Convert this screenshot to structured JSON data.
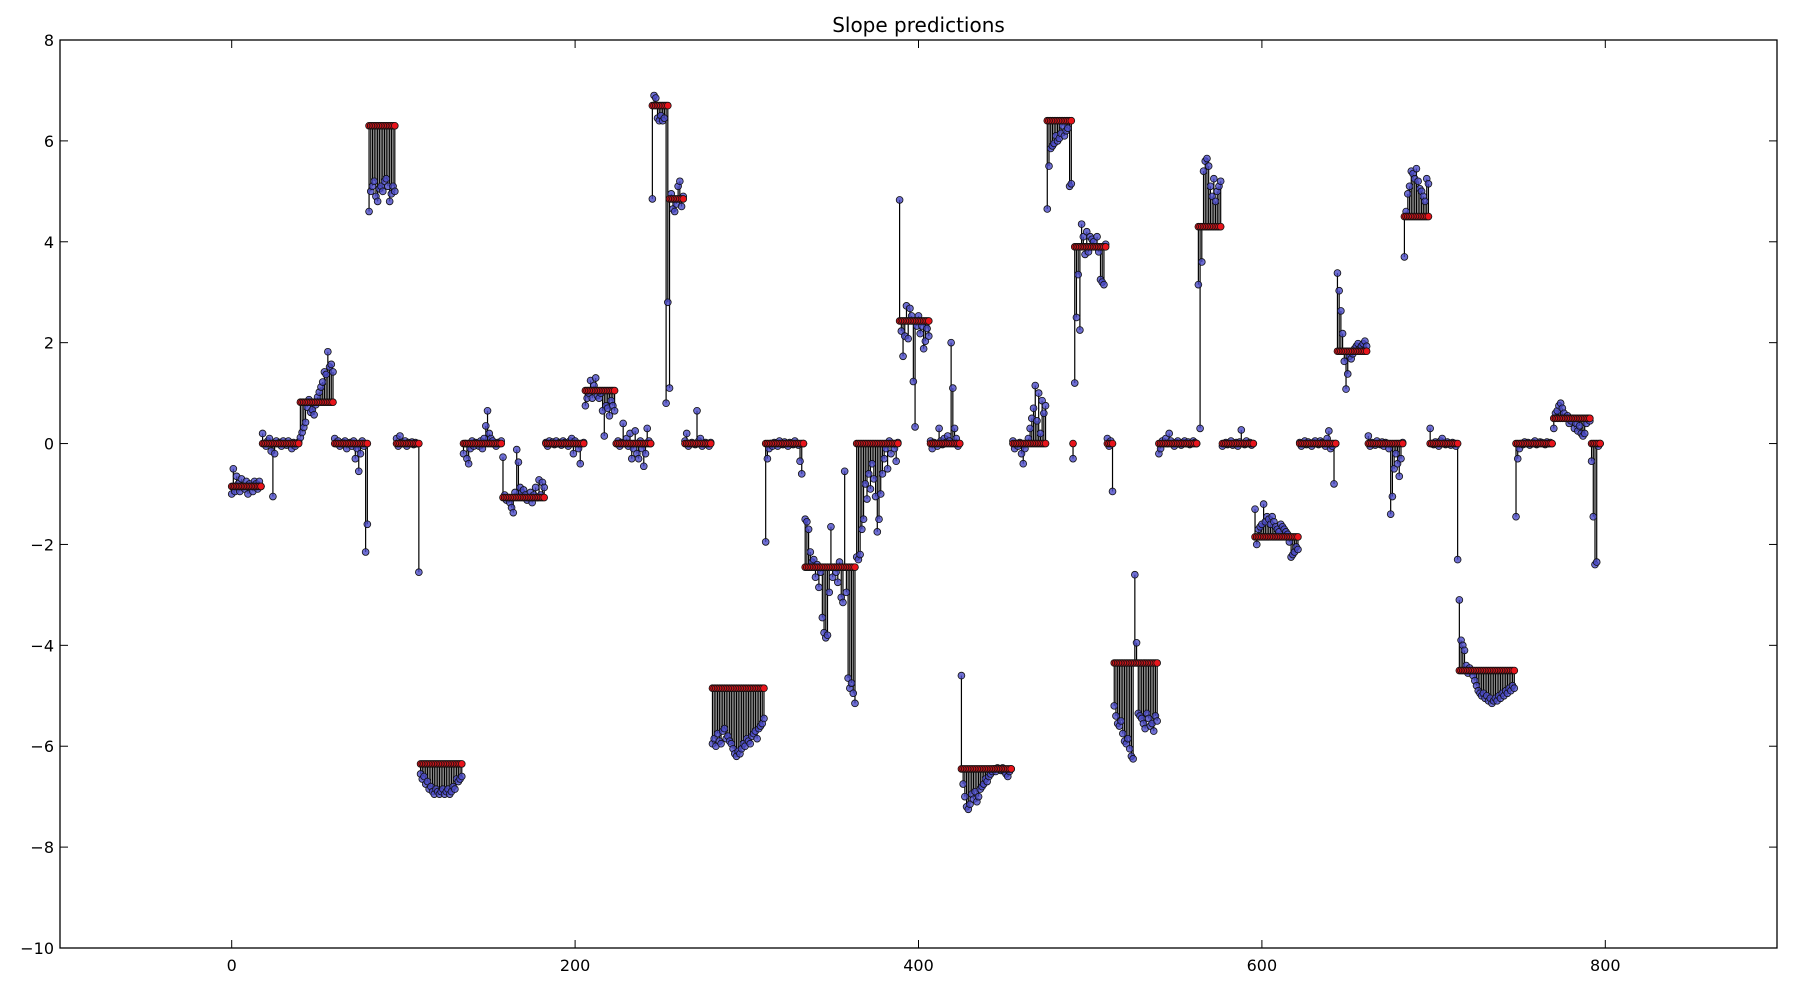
{
  "chart_data": {
    "type": "scatter",
    "title": "Slope predictions",
    "xlabel": "",
    "ylabel": "",
    "xlim": [
      -100,
      900
    ],
    "ylim": [
      -10,
      8
    ],
    "xticks": [
      0,
      200,
      400,
      600,
      800
    ],
    "yticks": [
      -10,
      -8,
      -6,
      -4,
      -2,
      0,
      2,
      4,
      6,
      8
    ],
    "grid": false,
    "legend": "none",
    "colors": {
      "actual": "#4b4bc8",
      "predicted": "#e8141b",
      "stem": "#000000"
    },
    "segments": [
      {
        "x0": 0,
        "x1": 18,
        "pred": -0.85,
        "dev": [
          -0.15,
          0.35,
          -0.1,
          0.2,
          0.05,
          -0.1,
          0.15,
          0,
          -0.05,
          0.1,
          -0.15,
          0.05,
          0,
          -0.1,
          0.1,
          0.05,
          -0.05,
          0.1,
          0
        ]
      },
      {
        "x0": 18,
        "x1": 40,
        "pred": 0,
        "dev": [
          0.2,
          0,
          -0.05,
          0.05,
          0.1,
          -0.15,
          -1.05,
          -0.2,
          0.05,
          0,
          0.02,
          -0.05,
          0.05,
          0,
          -0.03,
          0.05,
          0,
          -0.1,
          0.02,
          -0.05,
          0,
          0.03
        ]
      },
      {
        "x0": 40,
        "x1": 60,
        "pred": 0.82,
        "dev": [
          -0.7,
          -0.6,
          -0.5,
          -0.4,
          -0.1,
          0.05,
          -0.2,
          -0.15,
          -0.25,
          -0.05,
          0.1,
          0.2,
          0.3,
          0.4,
          0.6,
          0.55,
          1.0,
          0.7,
          0.75,
          0.6
        ]
      },
      {
        "x0": 60,
        "x1": 80,
        "pred": 0,
        "dev": [
          0.1,
          0,
          0.05,
          -0.05,
          0,
          0.02,
          0.05,
          -0.1,
          0,
          0.02,
          -0.05,
          0.05,
          -0.3,
          -0.1,
          -0.55,
          -0.2,
          0.05,
          -0.05,
          -2.15,
          -1.6
        ]
      },
      {
        "x0": 80,
        "x1": 96,
        "pred": 6.3,
        "dev": [
          -1.7,
          -1.3,
          -1.2,
          -1.1,
          -1.4,
          -1.5,
          -1.25,
          -1.2,
          -1.3,
          -1.1,
          -1.05,
          -1.2,
          -1.5,
          -1.35,
          -1.2,
          -1.3
        ]
      },
      {
        "x0": 96,
        "x1": 110,
        "pred": 0,
        "dev": [
          0.1,
          -0.05,
          0.15,
          0.02,
          0,
          0.05,
          -0.05,
          0.02,
          0,
          0.03,
          -0.02,
          0.02,
          0,
          -2.55
        ]
      },
      {
        "x0": 110,
        "x1": 135,
        "pred": -6.35,
        "dev": [
          -0.2,
          -0.3,
          -0.25,
          -0.4,
          -0.35,
          -0.5,
          -0.45,
          -0.55,
          -0.6,
          -0.5,
          -0.55,
          -0.6,
          -0.55,
          -0.5,
          -0.6,
          -0.55,
          -0.5,
          -0.6,
          -0.55,
          -0.45,
          -0.5,
          -0.3,
          -0.35,
          -0.3,
          -0.25
        ]
      },
      {
        "x0": 135,
        "x1": 158,
        "pred": 0,
        "dev": [
          -0.2,
          0,
          -0.3,
          -0.4,
          -0.1,
          0.05,
          -0.05,
          0.02,
          0,
          -0.05,
          0.05,
          -0.1,
          0.1,
          0.35,
          0.65,
          0.2,
          0.1,
          0.05,
          0,
          -0.05,
          0.02,
          0,
          0.05
        ]
      },
      {
        "x0": 158,
        "x1": 183,
        "pred": -1.07,
        "dev": [
          0.8,
          0.05,
          -0.05,
          0,
          -0.1,
          -0.2,
          -0.3,
          0.1,
          0.95,
          0.7,
          0.2,
          0.1,
          0.15,
          0.05,
          -0.05,
          0,
          0.1,
          -0.1,
          0.05,
          0.2,
          0,
          0.35,
          0.05,
          0.3,
          0.2
        ]
      },
      {
        "x0": 183,
        "x1": 206,
        "pred": 0,
        "dev": [
          0.02,
          -0.05,
          0.05,
          0,
          0.03,
          -0.02,
          0.05,
          0,
          0.02,
          -0.03,
          0.05,
          0.02,
          0,
          -0.05,
          0.05,
          0.1,
          -0.2,
          0.05,
          0,
          -0.1,
          -0.4,
          0,
          0.02
        ]
      },
      {
        "x0": 206,
        "x1": 224,
        "pred": 1.05,
        "dev": [
          -0.3,
          -0.15,
          -0.05,
          0.2,
          -0.15,
          0.1,
          0.25,
          -0.1,
          -0.15,
          -0.05,
          -0.4,
          -0.9,
          -0.3,
          -0.35,
          -0.5,
          -0.2,
          -0.3,
          -0.4
        ]
      },
      {
        "x0": 224,
        "x1": 245,
        "pred": 0,
        "dev": [
          0,
          0.05,
          -0.05,
          0.02,
          0.4,
          0,
          0.1,
          -0.05,
          0.2,
          -0.3,
          -0.1,
          0.25,
          -0.2,
          -0.3,
          0.05,
          -0.1,
          -0.45,
          -0.2,
          0.3,
          0.05,
          0
        ]
      },
      {
        "x0": 245,
        "x1": 255,
        "pred": 6.7,
        "dev": [
          -1.85,
          0.2,
          0.15,
          -0.25,
          -0.3,
          -0.2,
          -0.3,
          -0.25,
          -5.9,
          -3.9
        ]
      },
      {
        "x0": 255,
        "x1": 264,
        "pred": 4.85,
        "dev": [
          -3.75,
          0.1,
          -0.2,
          -0.25,
          -0.1,
          0.25,
          0.35,
          -0.15,
          0.05
        ]
      },
      {
        "x0": 264,
        "x1": 280,
        "pred": 0,
        "dev": [
          0.05,
          0.2,
          -0.05,
          0,
          0.02,
          0,
          -0.02,
          0.65,
          0.05,
          0.1,
          -0.05,
          0,
          0.02,
          0,
          -0.05,
          0.02
        ]
      },
      {
        "x0": 280,
        "x1": 311,
        "pred": -4.85,
        "dev": [
          -1.1,
          -1.0,
          -1.15,
          -0.9,
          -1.05,
          -1.1,
          -0.85,
          -0.8,
          -1.0,
          -0.95,
          -1.05,
          -1.1,
          -1.2,
          -1.3,
          -1.35,
          -1.25,
          -1.3,
          -1.2,
          -1.1,
          -1.15,
          -1.0,
          -1.05,
          -1.1,
          -0.95,
          -0.9,
          -0.85,
          -1.0,
          -0.8,
          -0.75,
          -0.7,
          -0.6
        ]
      },
      {
        "x0": 311,
        "x1": 334,
        "pred": 0,
        "dev": [
          -1.95,
          -0.3,
          -0.1,
          0,
          -0.05,
          0.02,
          0,
          -0.05,
          0.05,
          0,
          -0.02,
          0.03,
          0,
          -0.05,
          0.02,
          0,
          -0.02,
          0.05,
          0,
          -0.03,
          -0.35,
          -0.6,
          0
        ]
      },
      {
        "x0": 334,
        "x1": 364,
        "pred": -2.45,
        "dev": [
          0.95,
          0.9,
          0.75,
          0.3,
          0.1,
          0.15,
          -0.2,
          0.05,
          -0.4,
          -0.1,
          -1.0,
          -1.3,
          -1.4,
          -1.35,
          -0.5,
          0.8,
          -0.2,
          0,
          -0.1,
          -0.3,
          0.1,
          -0.6,
          -0.7,
          1.9,
          -0.5,
          -2.2,
          -2.4,
          -2.3,
          -2.5,
          -2.7
        ]
      },
      {
        "x0": 364,
        "x1": 389,
        "pred": 0,
        "dev": [
          -2.25,
          -2.3,
          -2.2,
          -1.7,
          -1.5,
          -0.8,
          -1.1,
          -0.6,
          -0.9,
          -0.4,
          -0.7,
          -1.05,
          -1.75,
          -1.5,
          -1.0,
          -0.6,
          -0.3,
          -0.1,
          -0.5,
          0.05,
          -0.2,
          0,
          -0.1,
          -0.35,
          0.02
        ]
      },
      {
        "x0": 389,
        "x1": 407,
        "pred": 2.43,
        "dev": [
          2.4,
          -0.2,
          -0.7,
          -0.3,
          0.3,
          -0.35,
          0.25,
          0.1,
          -1.2,
          -2.1,
          -0.1,
          0.1,
          -0.25,
          -0.1,
          -0.55,
          -0.4,
          -0.15,
          -0.3
        ]
      },
      {
        "x0": 407,
        "x1": 425,
        "pred": 0,
        "dev": [
          0.05,
          -0.1,
          0.02,
          0,
          -0.05,
          0.3,
          0.05,
          -0.02,
          0.1,
          0.02,
          0.15,
          0.05,
          2.0,
          1.1,
          0.3,
          0.1,
          -0.05,
          0
        ]
      },
      {
        "x0": 425,
        "x1": 455,
        "pred": -6.45,
        "dev": [
          1.85,
          -0.3,
          -0.55,
          -0.75,
          -0.8,
          -0.7,
          -0.5,
          -0.6,
          -0.45,
          -0.65,
          -0.55,
          -0.4,
          -0.35,
          -0.3,
          -0.2,
          -0.25,
          -0.15,
          -0.1,
          -0.05,
          0,
          -0.05,
          0.02,
          0,
          -0.03,
          0.02,
          -0.05,
          -0.1,
          -0.15,
          -0.05,
          0
        ]
      },
      {
        "x0": 455,
        "x1": 475,
        "pred": 0,
        "dev": [
          0.05,
          -0.1,
          0,
          -0.05,
          0.02,
          -0.2,
          -0.4,
          -0.1,
          0,
          0.1,
          0.3,
          0.5,
          0.7,
          1.15,
          0.45,
          1.0,
          0.2,
          0.85,
          0.6,
          0.75
        ]
      },
      {
        "x0": 475,
        "x1": 490,
        "pred": 6.4,
        "dev": [
          -1.75,
          -0.9,
          -0.55,
          -0.5,
          -0.45,
          -0.3,
          -0.4,
          -0.35,
          -0.25,
          -0.1,
          -0.3,
          -0.2,
          -0.15,
          -1.3,
          -1.25
        ]
      },
      {
        "x0": 490,
        "x1": 491,
        "pred": 0,
        "dev": [
          -0.3
        ]
      },
      {
        "x0": 491,
        "x1": 510,
        "pred": 3.9,
        "dev": [
          -2.7,
          -1.4,
          -0.55,
          -1.65,
          0.45,
          0.2,
          -0.15,
          0.3,
          -0.1,
          0.2,
          0.15,
          0.1,
          0,
          0.2,
          -0.1,
          -0.65,
          -0.7,
          -0.75,
          0.05
        ]
      },
      {
        "x0": 510,
        "x1": 514,
        "pred": 0,
        "dev": [
          0.1,
          -0.05,
          0.05,
          -0.95
        ]
      },
      {
        "x0": 514,
        "x1": 540,
        "pred": -4.35,
        "dev": [
          -0.85,
          -1.05,
          -1.2,
          -1.25,
          -1.15,
          -1.4,
          -1.55,
          -1.6,
          -1.5,
          -1.7,
          -1.85,
          -1.9,
          1.75,
          0.4,
          -1.0,
          -1.05,
          -1.1,
          -1.2,
          -1.3,
          -1.0,
          -1.1,
          -1.25,
          -1.2,
          -1.35,
          -1.05,
          -1.15
        ]
      },
      {
        "x0": 540,
        "x1": 563,
        "pred": 0,
        "dev": [
          -0.2,
          -0.1,
          0.05,
          0,
          0.1,
          0,
          0.2,
          0.05,
          0,
          -0.05,
          0.02,
          0.05,
          0,
          -0.03,
          0.02,
          0.05,
          0,
          0.03,
          -0.02,
          0,
          0.05,
          0.02,
          0
        ]
      },
      {
        "x0": 563,
        "x1": 577,
        "pred": 4.3,
        "dev": [
          -1.15,
          -4.0,
          -0.7,
          1.1,
          1.3,
          1.35,
          1.2,
          0.8,
          0.6,
          0.95,
          0.5,
          0.7,
          0.8,
          0.9
        ]
      },
      {
        "x0": 577,
        "x1": 596,
        "pred": 0,
        "dev": [
          -0.05,
          0,
          0.02,
          -0.02,
          0,
          0.05,
          -0.03,
          0,
          0.02,
          -0.05,
          0.03,
          0.27,
          0,
          -0.02,
          0.05,
          0,
          0.02,
          -0.03,
          0
        ]
      },
      {
        "x0": 596,
        "x1": 622,
        "pred": -1.85,
        "dev": [
          0.55,
          -0.15,
          0.15,
          0.2,
          0.25,
          0.65,
          0.3,
          0.4,
          0.35,
          0.25,
          0.4,
          0.3,
          0.2,
          0.15,
          0.1,
          0.25,
          0.2,
          0.15,
          0.1,
          0.05,
          -0.1,
          -0.4,
          -0.35,
          -0.3,
          -0.2,
          -0.25
        ]
      },
      {
        "x0": 622,
        "x1": 644,
        "pred": 0,
        "dev": [
          0.02,
          -0.05,
          0,
          0.05,
          -0.02,
          0.03,
          0,
          -0.05,
          0.02,
          0.05,
          0,
          -0.02,
          0.05,
          0.02,
          0,
          -0.05,
          0.1,
          0.25,
          -0.1,
          -0.05,
          -0.8,
          0
        ]
      },
      {
        "x0": 644,
        "x1": 662,
        "pred": 1.83,
        "dev": [
          1.55,
          1.2,
          0.8,
          0.35,
          -0.2,
          -0.75,
          -0.45,
          -0.1,
          -0.15,
          -0.05,
          0.05,
          0.1,
          0.15,
          0.05,
          0.1,
          0.15,
          0.2,
          0.1
        ]
      },
      {
        "x0": 662,
        "x1": 683,
        "pred": 0,
        "dev": [
          0.15,
          -0.05,
          0.02,
          0,
          -0.03,
          0.05,
          0,
          -0.02,
          0.03,
          -0.05,
          0.02,
          0,
          -0.1,
          -1.4,
          -1.05,
          -0.5,
          -0.2,
          -0.4,
          -0.65,
          -0.3,
          0.02
        ]
      },
      {
        "x0": 683,
        "x1": 698,
        "pred": 4.5,
        "dev": [
          -0.8,
          0.1,
          0.45,
          0.6,
          0.9,
          0.85,
          0.75,
          0.95,
          0.7,
          0.55,
          0.5,
          0.4,
          0.3,
          0.75,
          0.65
        ]
      },
      {
        "x0": 698,
        "x1": 715,
        "pred": 0,
        "dev": [
          0.3,
          0,
          -0.02,
          0.03,
          0,
          -0.05,
          0.05,
          0.1,
          0,
          -0.02,
          0.03,
          0,
          -0.03,
          0.02,
          0,
          -0.05,
          -2.3
        ]
      },
      {
        "x0": 715,
        "x1": 748,
        "pred": -4.5,
        "dev": [
          1.4,
          0.6,
          0.5,
          0.4,
          0.1,
          -0.05,
          0.05,
          0,
          -0.1,
          -0.2,
          -0.3,
          -0.4,
          -0.45,
          -0.5,
          -0.45,
          -0.55,
          -0.5,
          -0.6,
          -0.55,
          -0.65,
          -0.6,
          -0.55,
          -0.6,
          -0.5,
          -0.55,
          -0.45,
          -0.5,
          -0.4,
          -0.45,
          -0.35,
          -0.4,
          -0.3,
          -0.35
        ]
      },
      {
        "x0": 748,
        "x1": 770,
        "pred": 0,
        "dev": [
          -1.45,
          -0.3,
          -0.1,
          0,
          -0.02,
          0.03,
          0,
          0.02,
          -0.03,
          0,
          0.02,
          0.05,
          -0.02,
          0,
          0.03,
          0.02,
          0,
          -0.02,
          0.03,
          0,
          0.02,
          0
        ]
      },
      {
        "x0": 770,
        "x1": 792,
        "pred": 0.5,
        "dev": [
          -0.2,
          0.1,
          0.15,
          0.25,
          0.3,
          0.2,
          0.1,
          0,
          0.05,
          -0.1,
          -0.05,
          0,
          -0.2,
          -0.1,
          -0.25,
          -0.15,
          -0.3,
          -0.35,
          -0.3,
          -0.1,
          0,
          -0.05
        ]
      },
      {
        "x0": 792,
        "x1": 798,
        "pred": 0,
        "dev": [
          -0.35,
          -1.45,
          -2.4,
          -2.35,
          -0.05,
          0
        ]
      }
    ]
  }
}
